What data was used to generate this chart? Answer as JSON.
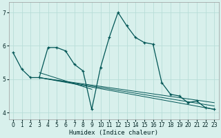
{
  "xlabel": "Humidex (Indice chaleur)",
  "bg_color": "#d8f0ec",
  "line_color": "#005555",
  "grid_color": "#b8ddd8",
  "x_data": [
    0,
    1,
    2,
    3,
    4,
    5,
    6,
    7,
    8,
    9,
    10,
    11,
    12,
    13,
    14,
    15,
    16,
    17,
    18,
    19,
    20,
    21,
    22,
    23
  ],
  "y_main": [
    5.8,
    5.3,
    5.05,
    5.05,
    5.95,
    5.95,
    5.85,
    5.45,
    5.25,
    4.1,
    5.35,
    6.25,
    7.0,
    6.6,
    6.25,
    6.1,
    6.05,
    4.9,
    4.55,
    4.5,
    4.3,
    4.35,
    4.15,
    4.1
  ],
  "ylim": [
    3.8,
    7.3
  ],
  "xlim": [
    -0.5,
    23.5
  ],
  "yticks": [
    4,
    5,
    6,
    7
  ],
  "xticks": [
    0,
    1,
    2,
    3,
    4,
    5,
    6,
    7,
    8,
    9,
    10,
    11,
    12,
    13,
    14,
    15,
    16,
    17,
    18,
    19,
    20,
    21,
    22,
    23
  ],
  "regression_lines": [
    {
      "x0": 3,
      "y0": 5.05,
      "x1": 23,
      "y1": 4.1
    },
    {
      "x0": 3,
      "y0": 5.05,
      "x1": 23,
      "y1": 4.2
    },
    {
      "x0": 3,
      "y0": 5.05,
      "x1": 23,
      "y1": 4.3
    },
    {
      "x0": 3,
      "y0": 5.2,
      "x1": 9,
      "y1": 4.7
    }
  ],
  "font_color": "#002222"
}
